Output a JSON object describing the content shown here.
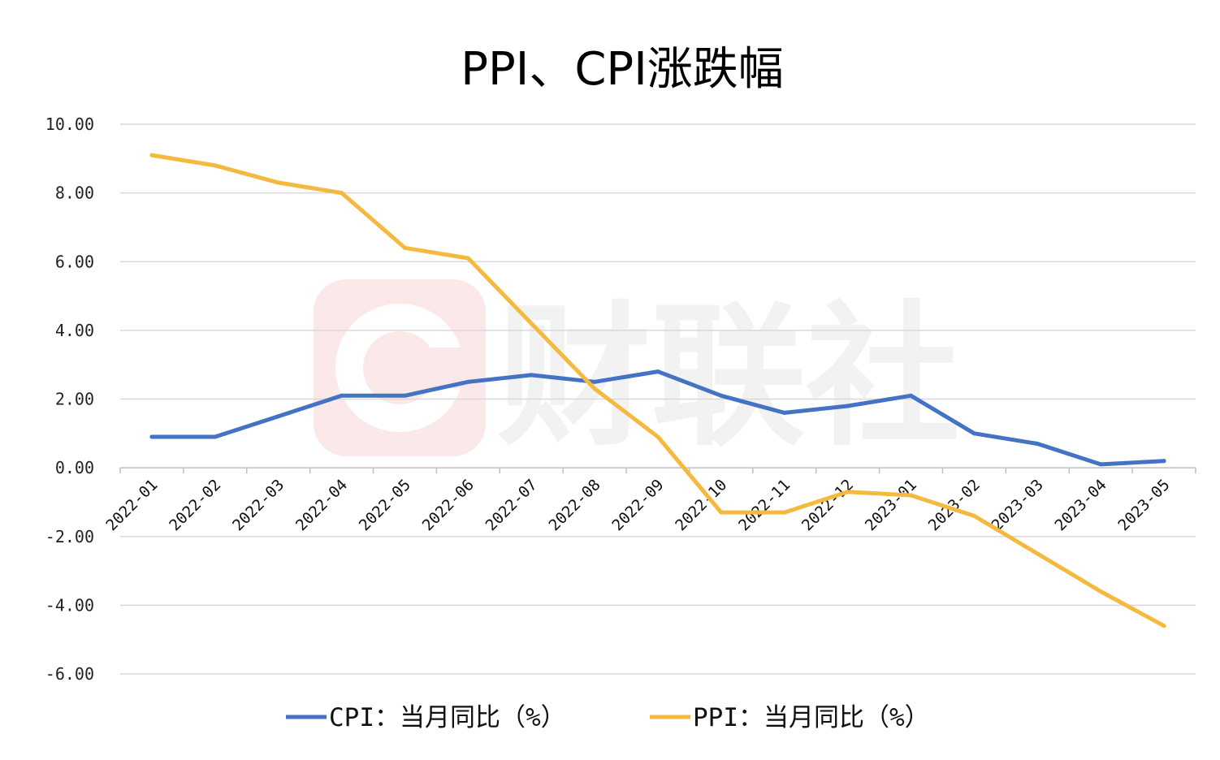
{
  "chart_data": {
    "type": "line",
    "title": "PPI、CPI涨跌幅",
    "xlabel": "",
    "ylabel": "",
    "ylim": [
      -6,
      10
    ],
    "yticks": [
      10,
      8,
      6,
      4,
      2,
      0,
      -2,
      -4,
      -6
    ],
    "ytick_labels": [
      "10.00",
      "8.00",
      "6.00",
      "4.00",
      "2.00",
      "0.00",
      "-2.00",
      "-4.00",
      "-6.00"
    ],
    "categories": [
      "2022-01",
      "2022-02",
      "2022-03",
      "2022-04",
      "2022-05",
      "2022-06",
      "2022-07",
      "2022-08",
      "2022-09",
      "2022-10",
      "2022-11",
      "2022-12",
      "2023-01",
      "2023-02",
      "2023-03",
      "2023-04",
      "2023-05"
    ],
    "grid": true,
    "legend_position": "bottom",
    "series": [
      {
        "name": "CPI：当月同比（%）",
        "color": "#4472C4",
        "values": [
          0.9,
          0.9,
          1.5,
          2.1,
          2.1,
          2.5,
          2.7,
          2.5,
          2.8,
          2.1,
          1.6,
          1.8,
          2.1,
          1.0,
          0.7,
          0.1,
          0.2
        ]
      },
      {
        "name": "PPI：当月同比（%）",
        "color": "#F4B93E",
        "values": [
          9.1,
          8.8,
          8.3,
          8.0,
          6.4,
          6.1,
          4.2,
          2.3,
          0.9,
          -1.3,
          -1.3,
          -0.7,
          -0.8,
          -1.4,
          -2.5,
          -3.6,
          -4.6
        ]
      }
    ],
    "watermark": "财联社"
  }
}
